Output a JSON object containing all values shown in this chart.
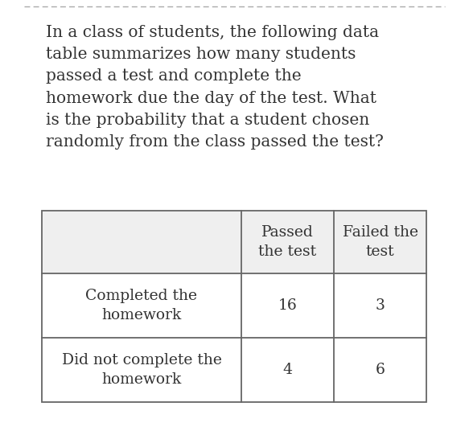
{
  "question_text": "In a class of students, the following data\ntable summarizes how many students\npassed a test and complete the\nhomework due the day of the test. What\nis the probability that a student chosen\nrandomly from the class passed the test?",
  "col_headers": [
    "",
    "Passed\nthe test",
    "Failed the\ntest"
  ],
  "row_labels": [
    "Completed the\nhomework",
    "Did not complete the\nhomework"
  ],
  "data": [
    [
      16,
      3
    ],
    [
      4,
      6
    ]
  ],
  "bg_color": "#ffffff",
  "text_color": "#333333",
  "header_bg": "#efefef",
  "cell_bg": "#ffffff",
  "border_color": "#666666",
  "dashed_line_color": "#aaaaaa",
  "question_fontsize": 14.5,
  "table_fontsize": 13.5,
  "fig_width": 5.83,
  "fig_height": 5.31,
  "dpi": 100
}
